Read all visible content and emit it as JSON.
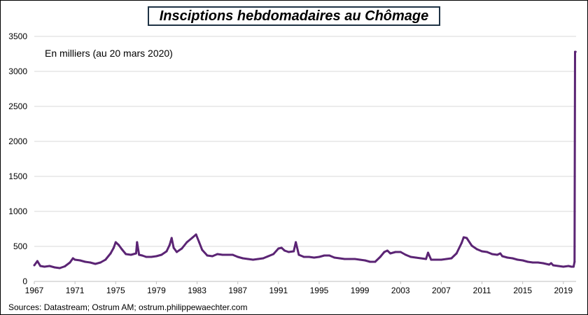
{
  "chart_data": {
    "type": "line",
    "title": "Insciptions hebdomadaires au Chômage",
    "annotation": "En milliers (au 20 mars 2020)",
    "source": "Sources: Datastream;  Ostrum AM; ostrum.philippewaechter.com",
    "xlabel": "",
    "ylabel": "",
    "xlim": [
      1967,
      2020.25
    ],
    "ylim": [
      0,
      3500
    ],
    "yticks": [
      0,
      500,
      1000,
      1500,
      2000,
      2500,
      3000,
      3500
    ],
    "xticks": [
      1967,
      1971,
      1975,
      1979,
      1983,
      1987,
      1991,
      1995,
      1999,
      2003,
      2007,
      2011,
      2015,
      2019
    ],
    "grid": "horizontal",
    "legend": "none",
    "line_color": "#5b2474",
    "series": [
      {
        "name": "",
        "x": [
          1967.0,
          1967.3,
          1967.6,
          1968.0,
          1968.5,
          1969.0,
          1969.5,
          1970.0,
          1970.5,
          1970.8,
          1971.0,
          1971.5,
          1972.0,
          1972.5,
          1973.0,
          1973.5,
          1974.0,
          1974.5,
          1974.8,
          1975.0,
          1975.3,
          1975.6,
          1976.0,
          1976.5,
          1977.0,
          1977.1,
          1977.3,
          1977.6,
          1978.0,
          1978.5,
          1979.0,
          1979.5,
          1980.0,
          1980.3,
          1980.5,
          1980.7,
          1981.0,
          1981.5,
          1982.0,
          1982.5,
          1982.9,
          1983.2,
          1983.5,
          1984.0,
          1984.5,
          1985.0,
          1985.5,
          1986.0,
          1986.5,
          1987.0,
          1987.5,
          1988.0,
          1988.5,
          1989.0,
          1989.5,
          1990.0,
          1990.5,
          1991.0,
          1991.3,
          1991.6,
          1992.0,
          1992.5,
          1992.7,
          1993.0,
          1993.5,
          1994.0,
          1994.5,
          1995.0,
          1995.5,
          1996.0,
          1996.5,
          1997.0,
          1997.5,
          1998.0,
          1998.5,
          1999.0,
          1999.5,
          2000.0,
          2000.5,
          2001.0,
          2001.4,
          2001.7,
          2002.0,
          2002.5,
          2003.0,
          2003.5,
          2004.0,
          2004.5,
          2005.0,
          2005.5,
          2005.7,
          2006.0,
          2006.5,
          2007.0,
          2007.5,
          2008.0,
          2008.5,
          2009.0,
          2009.2,
          2009.5,
          2010.0,
          2010.5,
          2011.0,
          2011.5,
          2012.0,
          2012.5,
          2012.8,
          2013.0,
          2013.5,
          2014.0,
          2014.5,
          2015.0,
          2015.5,
          2016.0,
          2016.5,
          2017.0,
          2017.6,
          2017.8,
          2018.0,
          2018.5,
          2019.0,
          2019.5,
          2019.8,
          2020.0,
          2020.1,
          2020.15,
          2020.2
        ],
        "y": [
          230,
          290,
          220,
          210,
          220,
          200,
          190,
          215,
          270,
          330,
          310,
          300,
          280,
          270,
          250,
          270,
          310,
          400,
          480,
          560,
          520,
          460,
          390,
          380,
          400,
          560,
          380,
          370,
          350,
          350,
          360,
          380,
          430,
          520,
          620,
          480,
          420,
          470,
          560,
          620,
          670,
          560,
          450,
          370,
          360,
          390,
          380,
          380,
          380,
          350,
          330,
          320,
          310,
          320,
          330,
          360,
          390,
          470,
          480,
          440,
          420,
          430,
          560,
          380,
          350,
          350,
          340,
          350,
          370,
          370,
          340,
          330,
          320,
          320,
          320,
          310,
          300,
          280,
          280,
          350,
          420,
          440,
          400,
          420,
          420,
          380,
          350,
          340,
          330,
          320,
          410,
          310,
          310,
          310,
          320,
          330,
          400,
          550,
          630,
          620,
          510,
          460,
          430,
          420,
          390,
          380,
          400,
          360,
          340,
          330,
          310,
          300,
          280,
          270,
          270,
          260,
          240,
          260,
          230,
          220,
          210,
          220,
          210,
          210,
          280,
          3280,
          3280
        ]
      }
    ]
  }
}
